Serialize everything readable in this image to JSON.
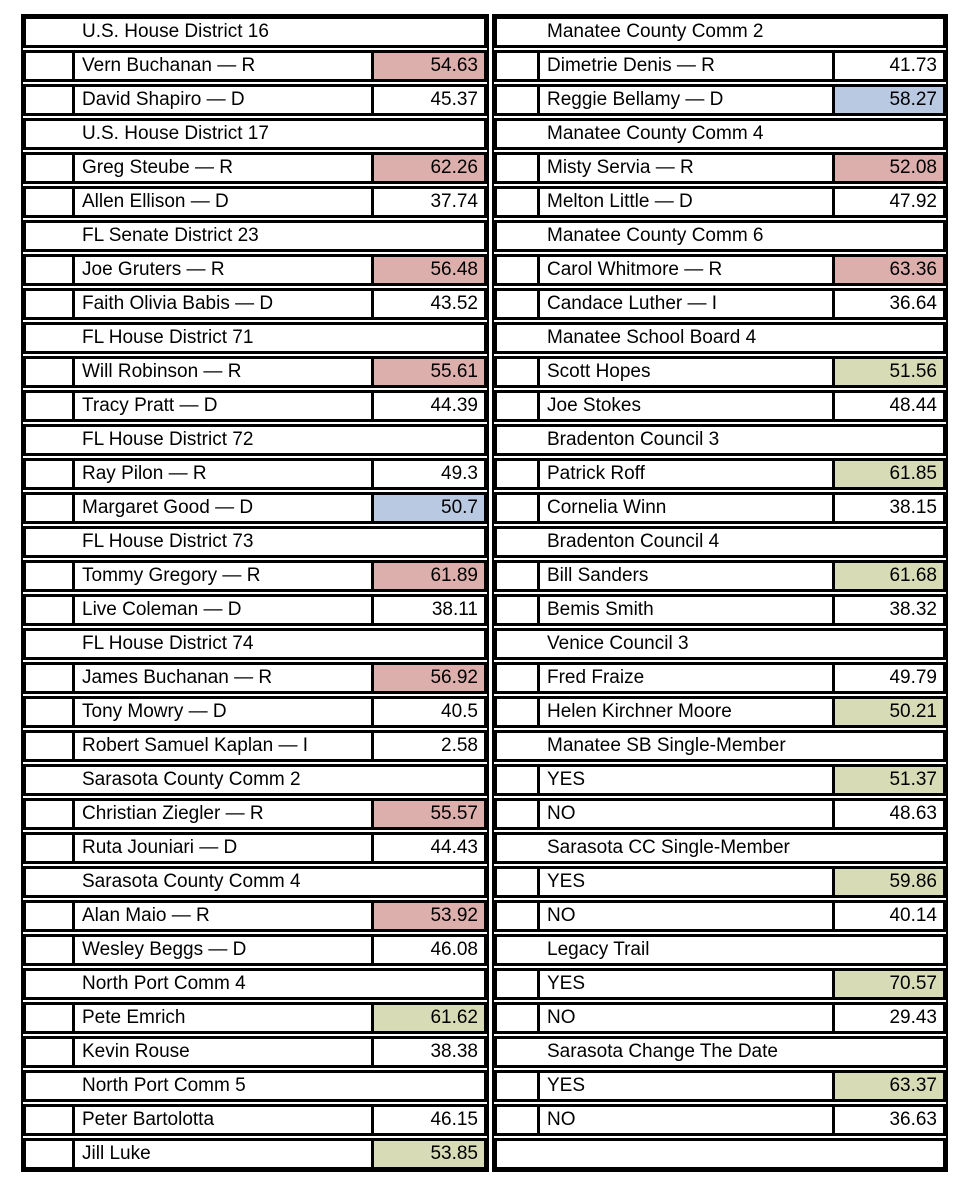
{
  "highlight_colors": {
    "rep_win": "#dcaeac",
    "dem_win": "#b9c9e2",
    "nonpartisan_win": "#d7dcb7"
  },
  "chart_data": {
    "type": "table",
    "value_unit": "percent of vote",
    "columns": [
      {
        "side": "left",
        "trailing_empty_row": false,
        "races": [
          {
            "race": "U.S. House District 16",
            "results": [
              {
                "name": "Vern Buchanan — R",
                "pct": "54.63",
                "highlight": "rep_win"
              },
              {
                "name": "David Shapiro — D",
                "pct": "45.37",
                "highlight": null
              }
            ]
          },
          {
            "race": "U.S. House District 17",
            "results": [
              {
                "name": "Greg Steube — R",
                "pct": "62.26",
                "highlight": "rep_win"
              },
              {
                "name": "Allen Ellison — D",
                "pct": "37.74",
                "highlight": null
              }
            ]
          },
          {
            "race": "FL Senate District 23",
            "results": [
              {
                "name": "Joe Gruters — R",
                "pct": "56.48",
                "highlight": "rep_win"
              },
              {
                "name": "Faith Olivia Babis — D",
                "pct": "43.52",
                "highlight": null
              }
            ]
          },
          {
            "race": "FL House District 71",
            "results": [
              {
                "name": "Will Robinson — R",
                "pct": "55.61",
                "highlight": "rep_win"
              },
              {
                "name": "Tracy Pratt — D",
                "pct": "44.39",
                "highlight": null
              }
            ]
          },
          {
            "race": "FL House District 72",
            "results": [
              {
                "name": "Ray Pilon — R",
                "pct": "49.3",
                "highlight": null
              },
              {
                "name": "Margaret Good — D",
                "pct": "50.7",
                "highlight": "dem_win"
              }
            ]
          },
          {
            "race": "FL House District 73",
            "results": [
              {
                "name": "Tommy Gregory — R",
                "pct": "61.89",
                "highlight": "rep_win"
              },
              {
                "name": "Live Coleman — D",
                "pct": "38.11",
                "highlight": null
              }
            ]
          },
          {
            "race": "FL House District 74",
            "results": [
              {
                "name": "James Buchanan — R",
                "pct": "56.92",
                "highlight": "rep_win"
              },
              {
                "name": "Tony Mowry — D",
                "pct": "40.5",
                "highlight": null
              },
              {
                "name": "Robert Samuel Kaplan — I",
                "pct": "2.58",
                "highlight": null
              }
            ]
          },
          {
            "race": "Sarasota County Comm 2",
            "results": [
              {
                "name": "Christian Ziegler — R",
                "pct": "55.57",
                "highlight": "rep_win"
              },
              {
                "name": "Ruta Jouniari — D",
                "pct": "44.43",
                "highlight": null
              }
            ]
          },
          {
            "race": "Sarasota County Comm 4",
            "results": [
              {
                "name": "Alan Maio — R",
                "pct": "53.92",
                "highlight": "rep_win"
              },
              {
                "name": "Wesley Beggs — D",
                "pct": "46.08",
                "highlight": null
              }
            ]
          },
          {
            "race": "North Port Comm 4",
            "results": [
              {
                "name": "Pete Emrich",
                "pct": "61.62",
                "highlight": "nonpartisan_win"
              },
              {
                "name": "Kevin Rouse",
                "pct": "38.38",
                "highlight": null
              }
            ]
          },
          {
            "race": "North Port Comm 5",
            "results": [
              {
                "name": "Peter Bartolotta",
                "pct": "46.15",
                "highlight": null
              },
              {
                "name": "Jill Luke",
                "pct": "53.85",
                "highlight": "nonpartisan_win"
              }
            ]
          }
        ]
      },
      {
        "side": "right",
        "trailing_empty_row": true,
        "races": [
          {
            "race": "Manatee County Comm 2",
            "results": [
              {
                "name": "Dimetrie Denis — R",
                "pct": "41.73",
                "highlight": null
              },
              {
                "name": "Reggie Bellamy — D",
                "pct": "58.27",
                "highlight": "dem_win"
              }
            ]
          },
          {
            "race": "Manatee County Comm 4",
            "results": [
              {
                "name": "Misty Servia — R",
                "pct": "52.08",
                "highlight": "rep_win"
              },
              {
                "name": "Melton Little — D",
                "pct": "47.92",
                "highlight": null
              }
            ]
          },
          {
            "race": "Manatee County Comm 6",
            "results": [
              {
                "name": "Carol Whitmore — R",
                "pct": "63.36",
                "highlight": "rep_win"
              },
              {
                "name": "Candace Luther — I",
                "pct": "36.64",
                "highlight": null
              }
            ]
          },
          {
            "race": "Manatee School Board 4",
            "results": [
              {
                "name": "Scott Hopes",
                "pct": "51.56",
                "highlight": "nonpartisan_win"
              },
              {
                "name": "Joe Stokes",
                "pct": "48.44",
                "highlight": null
              }
            ]
          },
          {
            "race": "Bradenton Council 3",
            "results": [
              {
                "name": "Patrick Roff",
                "pct": "61.85",
                "highlight": "nonpartisan_win"
              },
              {
                "name": "Cornelia Winn",
                "pct": "38.15",
                "highlight": null
              }
            ]
          },
          {
            "race": "Bradenton Council 4",
            "results": [
              {
                "name": "Bill Sanders",
                "pct": "61.68",
                "highlight": "nonpartisan_win"
              },
              {
                "name": "Bemis Smith",
                "pct": "38.32",
                "highlight": null
              }
            ]
          },
          {
            "race": "Venice Council 3",
            "results": [
              {
                "name": "Fred Fraize",
                "pct": "49.79",
                "highlight": null
              },
              {
                "name": "Helen Kirchner Moore",
                "pct": "50.21",
                "highlight": "nonpartisan_win"
              }
            ]
          },
          {
            "race": "Manatee SB Single-Member",
            "results": [
              {
                "name": "YES",
                "pct": "51.37",
                "highlight": "nonpartisan_win"
              },
              {
                "name": "NO",
                "pct": "48.63",
                "highlight": null
              }
            ]
          },
          {
            "race": "Sarasota CC Single-Member",
            "results": [
              {
                "name": "YES",
                "pct": "59.86",
                "highlight": "nonpartisan_win"
              },
              {
                "name": "NO",
                "pct": "40.14",
                "highlight": null
              }
            ]
          },
          {
            "race": "Legacy Trail",
            "results": [
              {
                "name": "YES",
                "pct": "70.57",
                "highlight": "nonpartisan_win"
              },
              {
                "name": "NO",
                "pct": "29.43",
                "highlight": null
              }
            ]
          },
          {
            "race": "Sarasota Change The Date",
            "results": [
              {
                "name": "YES",
                "pct": "63.37",
                "highlight": "nonpartisan_win"
              },
              {
                "name": "NO",
                "pct": "36.63",
                "highlight": null
              }
            ]
          }
        ]
      }
    ]
  }
}
